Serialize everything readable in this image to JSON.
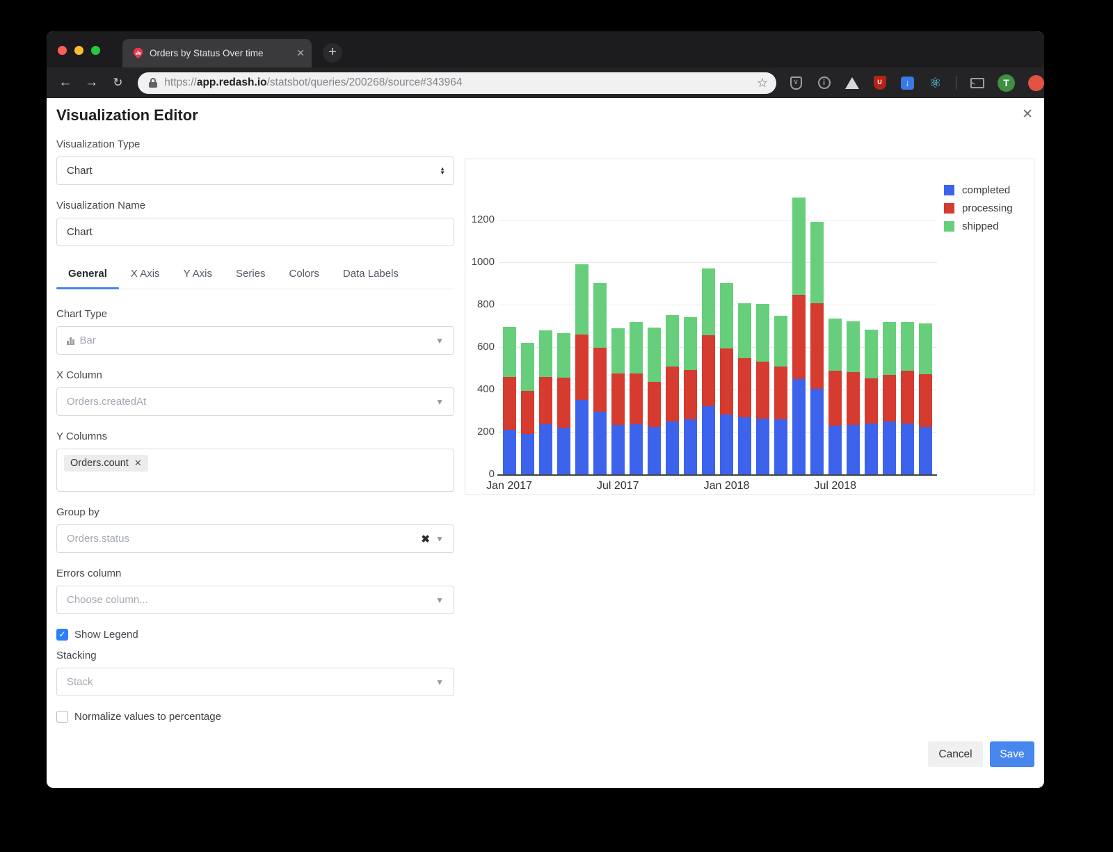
{
  "browser": {
    "tab_title": "Orders by Status Over time",
    "tab_close": "✕",
    "new_tab": "+",
    "back": "←",
    "forward": "→",
    "reload": "↻",
    "star": "☆",
    "url_scheme": "https://",
    "url_domain": "app.redash.io",
    "url_path": "/statsbot/queries/200268/source#343964",
    "avatar_letter": "T",
    "info_glyph": "i",
    "ublock_glyph": "U",
    "bluext_glyph": "↓",
    "react_glyph": "⚛"
  },
  "modal": {
    "title": "Visualization Editor",
    "close_glyph": "✕",
    "visualization_type": {
      "label": "Visualization Type",
      "value": "Chart"
    },
    "visualization_name": {
      "label": "Visualization Name",
      "value": "Chart"
    },
    "tabs": [
      {
        "label": "General",
        "active": true
      },
      {
        "label": "X Axis",
        "active": false
      },
      {
        "label": "Y Axis",
        "active": false
      },
      {
        "label": "Series",
        "active": false
      },
      {
        "label": "Colors",
        "active": false
      },
      {
        "label": "Data Labels",
        "active": false
      }
    ],
    "chart_type": {
      "label": "Chart Type",
      "value": "Bar"
    },
    "x_column": {
      "label": "X Column",
      "value": "Orders.createdAt"
    },
    "y_columns": {
      "label": "Y Columns",
      "chip": "Orders.count",
      "chip_remove": "✕"
    },
    "group_by": {
      "label": "Group by",
      "value": "Orders.status",
      "clear_glyph": "✖"
    },
    "errors_column": {
      "label": "Errors column",
      "placeholder": "Choose column..."
    },
    "show_legend": {
      "label": "Show Legend",
      "checked": true
    },
    "stacking": {
      "label": "Stacking",
      "value": "Stack"
    },
    "normalize": {
      "label": "Normalize values to percentage",
      "checked": false
    },
    "footer": {
      "cancel": "Cancel",
      "save": "Save"
    }
  },
  "chart_data": {
    "type": "bar",
    "stacked": true,
    "grid": true,
    "legend_position": "top-right",
    "n_bars": 24,
    "x_tick_labels": [
      "Jan 2017",
      "Jul 2017",
      "Jan 2018",
      "Jul 2018"
    ],
    "x_tick_indices": [
      0,
      6,
      12,
      18
    ],
    "y_ticks": [
      0,
      200,
      400,
      600,
      800,
      1000,
      1200
    ],
    "ylim": [
      0,
      1340
    ],
    "series": [
      {
        "name": "completed",
        "color": "#3D63EC",
        "values": [
          210,
          190,
          235,
          220,
          350,
          295,
          232,
          237,
          222,
          248,
          258,
          323,
          283,
          270,
          262,
          260,
          448,
          403,
          228,
          232,
          240,
          250,
          238,
          222
        ]
      },
      {
        "name": "processing",
        "color": "#D53B2F",
        "values": [
          250,
          205,
          225,
          235,
          308,
          302,
          243,
          240,
          215,
          260,
          234,
          334,
          312,
          277,
          268,
          248,
          397,
          405,
          259,
          251,
          213,
          220,
          249,
          250
        ]
      },
      {
        "name": "shipped",
        "color": "#67CF7C",
        "values": [
          235,
          225,
          218,
          210,
          332,
          306,
          213,
          241,
          255,
          242,
          248,
          313,
          308,
          258,
          273,
          239,
          460,
          382,
          246,
          239,
          229,
          248,
          231,
          238
        ]
      }
    ]
  }
}
